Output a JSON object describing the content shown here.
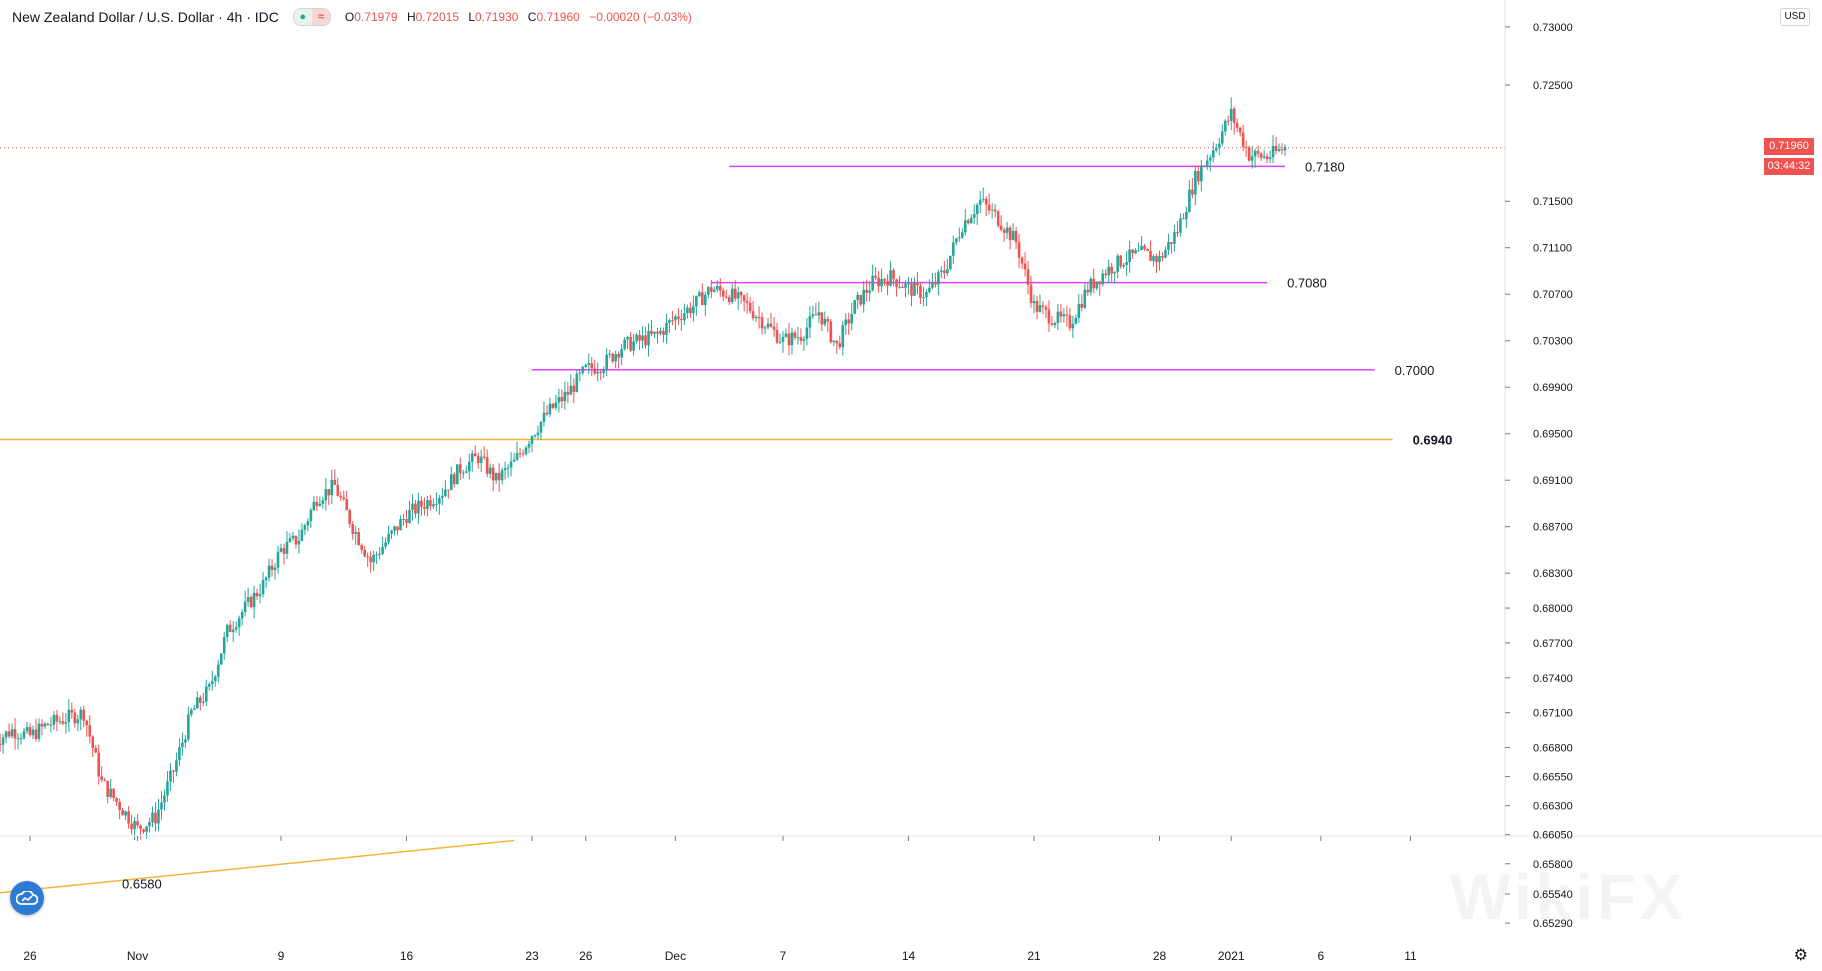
{
  "header": {
    "symbol_title": "New Zealand Dollar / U.S. Dollar · 4h · IDC",
    "open_label": "O",
    "open_value": "0.71979",
    "high_label": "H",
    "high_value": "0.72015",
    "low_label": "L",
    "low_value": "0.71930",
    "close_label": "C",
    "close_value": "0.71960",
    "change_value": "−0.00020 (−0.03%)"
  },
  "price_axis": {
    "currency_label": "USD",
    "ticks": [
      "0.73000",
      "0.72500",
      "0.71500",
      "0.71100",
      "0.70700",
      "0.70300",
      "0.69900",
      "0.69500",
      "0.69100",
      "0.68700",
      "0.68300",
      "0.68000",
      "0.67700",
      "0.67400",
      "0.67100",
      "0.66800",
      "0.66550",
      "0.66300",
      "0.66050",
      "0.65800",
      "0.65540",
      "0.65290"
    ],
    "current_price": "0.71960",
    "countdown": "03:44:32"
  },
  "time_axis": {
    "labels": [
      "26",
      "Nov",
      "9",
      "16",
      "23",
      "26",
      "Dec",
      "7",
      "14",
      "21",
      "28",
      "2021",
      "6",
      "11"
    ]
  },
  "annotations": {
    "level_0718": "0.7180",
    "level_0708": "0.7080",
    "level_0700": "0.7000",
    "level_0694": "0.6940",
    "level_0658": "0.6580"
  },
  "colors": {
    "up": "#26a69a",
    "down": "#ef5350",
    "magenta_line": "#e040fb",
    "orange_line": "#f0b43c",
    "price_line": "#ef5350"
  },
  "icons": {
    "settings": "gear-icon",
    "logo": "tradingview-cloud-icon"
  },
  "watermark": "WikiFX",
  "chart_data": {
    "type": "candlestick",
    "title": "New Zealand Dollar / U.S. Dollar · 4h · IDC",
    "ylim": [
      0.652,
      0.731
    ],
    "x_range": [
      "2020-10-23",
      "2021-01-13"
    ],
    "close_path": [
      [
        "2020-10-24",
        0.6685
      ],
      [
        "2020-10-25",
        0.6695
      ],
      [
        "2020-10-26",
        0.669
      ],
      [
        "2020-10-27",
        0.67
      ],
      [
        "2020-10-28",
        0.6705
      ],
      [
        "2020-10-29",
        0.671
      ],
      [
        "2020-10-30",
        0.665
      ],
      [
        "2020-10-31",
        0.663
      ],
      [
        "2020-11-01",
        0.661
      ],
      [
        "2020-11-02",
        0.662
      ],
      [
        "2020-11-03",
        0.666
      ],
      [
        "2020-11-04",
        0.671
      ],
      [
        "2020-11-05",
        0.673
      ],
      [
        "2020-11-06",
        0.678
      ],
      [
        "2020-11-07",
        0.68
      ],
      [
        "2020-11-08",
        0.682
      ],
      [
        "2020-11-09",
        0.685
      ],
      [
        "2020-11-10",
        0.686
      ],
      [
        "2020-11-11",
        0.6895
      ],
      [
        "2020-11-12",
        0.6905
      ],
      [
        "2020-11-13",
        0.687
      ],
      [
        "2020-11-14",
        0.684
      ],
      [
        "2020-11-15",
        0.686
      ],
      [
        "2020-11-16",
        0.688
      ],
      [
        "2020-11-17",
        0.689
      ],
      [
        "2020-11-18",
        0.69
      ],
      [
        "2020-11-19",
        0.692
      ],
      [
        "2020-11-20",
        0.693
      ],
      [
        "2020-11-21",
        0.691
      ],
      [
        "2020-11-22",
        0.6925
      ],
      [
        "2020-11-23",
        0.695
      ],
      [
        "2020-11-24",
        0.697
      ],
      [
        "2020-11-25",
        0.6985
      ],
      [
        "2020-11-26",
        0.7005
      ],
      [
        "2020-11-27",
        0.701
      ],
      [
        "2020-11-28",
        0.7025
      ],
      [
        "2020-11-29",
        0.703
      ],
      [
        "2020-11-30",
        0.7035
      ],
      [
        "2020-12-01",
        0.705
      ],
      [
        "2020-12-02",
        0.706
      ],
      [
        "2020-12-03",
        0.7075
      ],
      [
        "2020-12-04",
        0.707
      ],
      [
        "2020-12-05",
        0.706
      ],
      [
        "2020-12-06",
        0.7045
      ],
      [
        "2020-12-07",
        0.703
      ],
      [
        "2020-12-08",
        0.7035
      ],
      [
        "2020-12-09",
        0.7055
      ],
      [
        "2020-12-10",
        0.7025
      ],
      [
        "2020-12-11",
        0.706
      ],
      [
        "2020-12-12",
        0.708
      ],
      [
        "2020-12-13",
        0.7085
      ],
      [
        "2020-12-14",
        0.7075
      ],
      [
        "2020-12-15",
        0.707
      ],
      [
        "2020-12-16",
        0.709
      ],
      [
        "2020-12-17",
        0.713
      ],
      [
        "2020-12-18",
        0.715
      ],
      [
        "2020-12-19",
        0.7135
      ],
      [
        "2020-12-20",
        0.7115
      ],
      [
        "2020-12-21",
        0.706
      ],
      [
        "2020-12-22",
        0.705
      ],
      [
        "2020-12-23",
        0.7045
      ],
      [
        "2020-12-24",
        0.7075
      ],
      [
        "2020-12-25",
        0.709
      ],
      [
        "2020-12-26",
        0.71
      ],
      [
        "2020-12-27",
        0.7105
      ],
      [
        "2020-12-28",
        0.71
      ],
      [
        "2020-12-29",
        0.7125
      ],
      [
        "2020-12-30",
        0.717
      ],
      [
        "2020-12-31",
        0.7195
      ],
      [
        "2021-01-01",
        0.7225
      ],
      [
        "2021-01-02",
        0.719
      ],
      [
        "2021-01-03",
        0.7188
      ],
      [
        "2021-01-04",
        0.7196
      ]
    ],
    "horizontal_levels": [
      {
        "label": "0.7180",
        "price": 0.718,
        "from": "2020-12-04",
        "to": "2021-01-04",
        "color": "magenta"
      },
      {
        "label": "0.7080",
        "price": 0.708,
        "from": "2020-12-03",
        "to": "2021-01-03",
        "color": "magenta"
      },
      {
        "label": "0.7000",
        "price": 0.7005,
        "from": "2020-11-23",
        "to": "2021-01-09",
        "color": "magenta"
      },
      {
        "label": "0.6940",
        "price": 0.6945,
        "from": "2020-10-23",
        "to": "2021-01-10",
        "color": "orange"
      }
    ],
    "trend_line": {
      "label": "0.6580",
      "from": [
        "2020-10-23",
        0.6553
      ],
      "to": [
        "2020-11-22",
        0.66
      ],
      "color": "orange"
    },
    "current_price": 0.7196
  }
}
